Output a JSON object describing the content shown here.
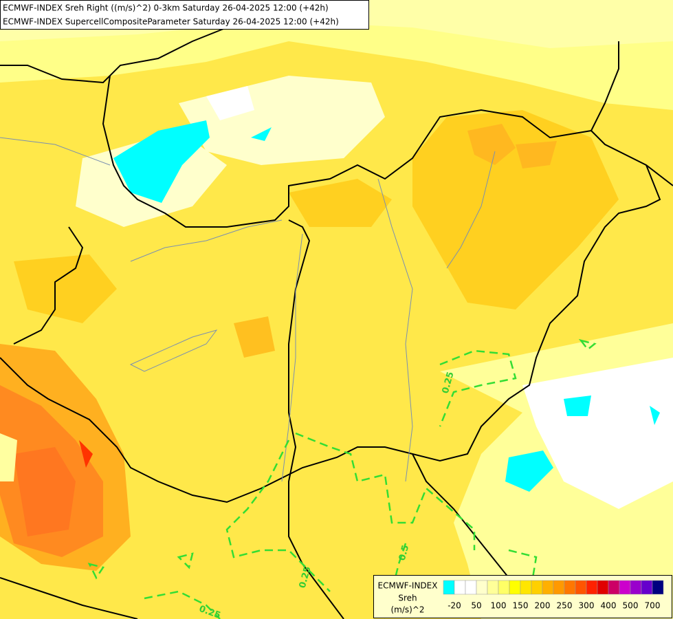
{
  "header": {
    "line1": "ECMWF-INDEX Sreh Right ((m/s)^2) 0-3km Saturday 26-04-2025 12:00 (+42h)",
    "line2": "ECMWF-INDEX SupercellCompositeParameter Saturday 26-04-2025 12:00 (+42h)"
  },
  "legend": {
    "title": "ECMWF-INDEX",
    "variable": "Sreh",
    "unit": "(m/s)^2",
    "labels": [
      "-20",
      "50",
      "100",
      "150",
      "200",
      "250",
      "300",
      "400",
      "500",
      "700"
    ],
    "colors": [
      "#00ffff",
      "#ffffff",
      "#ffffff",
      "#ffffcc",
      "#ffff99",
      "#ffff66",
      "#ffff00",
      "#ffe600",
      "#ffd000",
      "#ffb000",
      "#ff9900",
      "#ff7700",
      "#ff5500",
      "#ff2200",
      "#e00000",
      "#cc0066",
      "#cc00cc",
      "#9900cc",
      "#6600cc",
      "#000080"
    ]
  },
  "contour_labels": [
    "0.25",
    "0.5",
    "0.25",
    "0.25"
  ]
}
